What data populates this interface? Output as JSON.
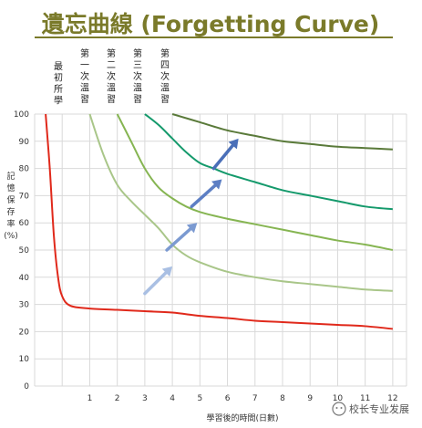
{
  "chart_data": {
    "type": "line",
    "title": "遺忘曲線 (Forgetting Curve)",
    "xlabel": "學習後的時間(日數)",
    "ylabel": "記憶保存率(%)",
    "xlim": [
      -1,
      12.5
    ],
    "ylim": [
      0,
      100
    ],
    "x_ticks": [
      1,
      2,
      3,
      4,
      5,
      6,
      7,
      8,
      9,
      10,
      11,
      12
    ],
    "y_ticks": [
      0,
      10,
      20,
      30,
      40,
      50,
      60,
      70,
      80,
      90,
      100
    ],
    "grid": true,
    "annotations": [
      "最初所學",
      "第一次溫習",
      "第二次溫習",
      "第三次溫習",
      "第四次溫習"
    ],
    "series": [
      {
        "color": "#e0291b",
        "points": [
          [
            -0.6,
            100
          ],
          [
            -0.45,
            80
          ],
          [
            -0.3,
            55
          ],
          [
            -0.15,
            40
          ],
          [
            0,
            33
          ],
          [
            0.3,
            29.5
          ],
          [
            1,
            28.5
          ],
          [
            2,
            28
          ],
          [
            3,
            27.5
          ],
          [
            4,
            27
          ],
          [
            5,
            25.8
          ],
          [
            6,
            25
          ],
          [
            7,
            24
          ],
          [
            8,
            23.5
          ],
          [
            9,
            23
          ],
          [
            10,
            22.5
          ],
          [
            11,
            22
          ],
          [
            12,
            21
          ]
        ]
      },
      {
        "color": "#a9c689",
        "points": [
          [
            1,
            100
          ],
          [
            1.5,
            85
          ],
          [
            2,
            74
          ],
          [
            2.5,
            68
          ],
          [
            3,
            63
          ],
          [
            3.5,
            58
          ],
          [
            4,
            52
          ],
          [
            4.5,
            48
          ],
          [
            5,
            45.5
          ],
          [
            6,
            42
          ],
          [
            7,
            40
          ],
          [
            8,
            38.5
          ],
          [
            9,
            37.5
          ],
          [
            10,
            36.5
          ],
          [
            11,
            35.5
          ],
          [
            12,
            35
          ]
        ]
      },
      {
        "color": "#86b552",
        "points": [
          [
            2,
            100
          ],
          [
            2.5,
            90
          ],
          [
            3,
            80
          ],
          [
            3.5,
            73
          ],
          [
            4,
            69
          ],
          [
            4.5,
            66
          ],
          [
            5,
            64
          ],
          [
            6,
            61.5
          ],
          [
            7,
            59.5
          ],
          [
            8,
            57.5
          ],
          [
            9,
            55.5
          ],
          [
            10,
            53.5
          ],
          [
            11,
            52
          ],
          [
            12,
            50
          ]
        ]
      },
      {
        "color": "#159a6c",
        "points": [
          [
            3,
            100
          ],
          [
            3.5,
            96
          ],
          [
            4,
            91
          ],
          [
            4.5,
            86
          ],
          [
            5,
            82
          ],
          [
            5.5,
            80
          ],
          [
            6,
            78
          ],
          [
            7,
            75
          ],
          [
            8,
            72
          ],
          [
            9,
            70
          ],
          [
            10,
            68
          ],
          [
            11,
            66
          ],
          [
            12,
            65
          ]
        ]
      },
      {
        "color": "#5a7a3a",
        "points": [
          [
            4,
            100
          ],
          [
            5,
            97
          ],
          [
            6,
            94
          ],
          [
            7,
            92
          ],
          [
            8,
            90
          ],
          [
            9,
            89
          ],
          [
            10,
            88
          ],
          [
            11,
            87.5
          ],
          [
            12,
            87
          ]
        ]
      }
    ],
    "arrows": [
      {
        "color": "#a9bfe3",
        "from": [
          3,
          34
        ],
        "to": [
          4,
          44
        ]
      },
      {
        "color": "#7b9ad1",
        "from": [
          3.8,
          50
        ],
        "to": [
          4.9,
          60
        ]
      },
      {
        "color": "#5d7fc4",
        "from": [
          4.7,
          66
        ],
        "to": [
          5.8,
          76
        ]
      },
      {
        "color": "#4a6fb8",
        "from": [
          5.5,
          80
        ],
        "to": [
          6.4,
          91
        ]
      }
    ]
  },
  "watermark": "校长专业发展"
}
